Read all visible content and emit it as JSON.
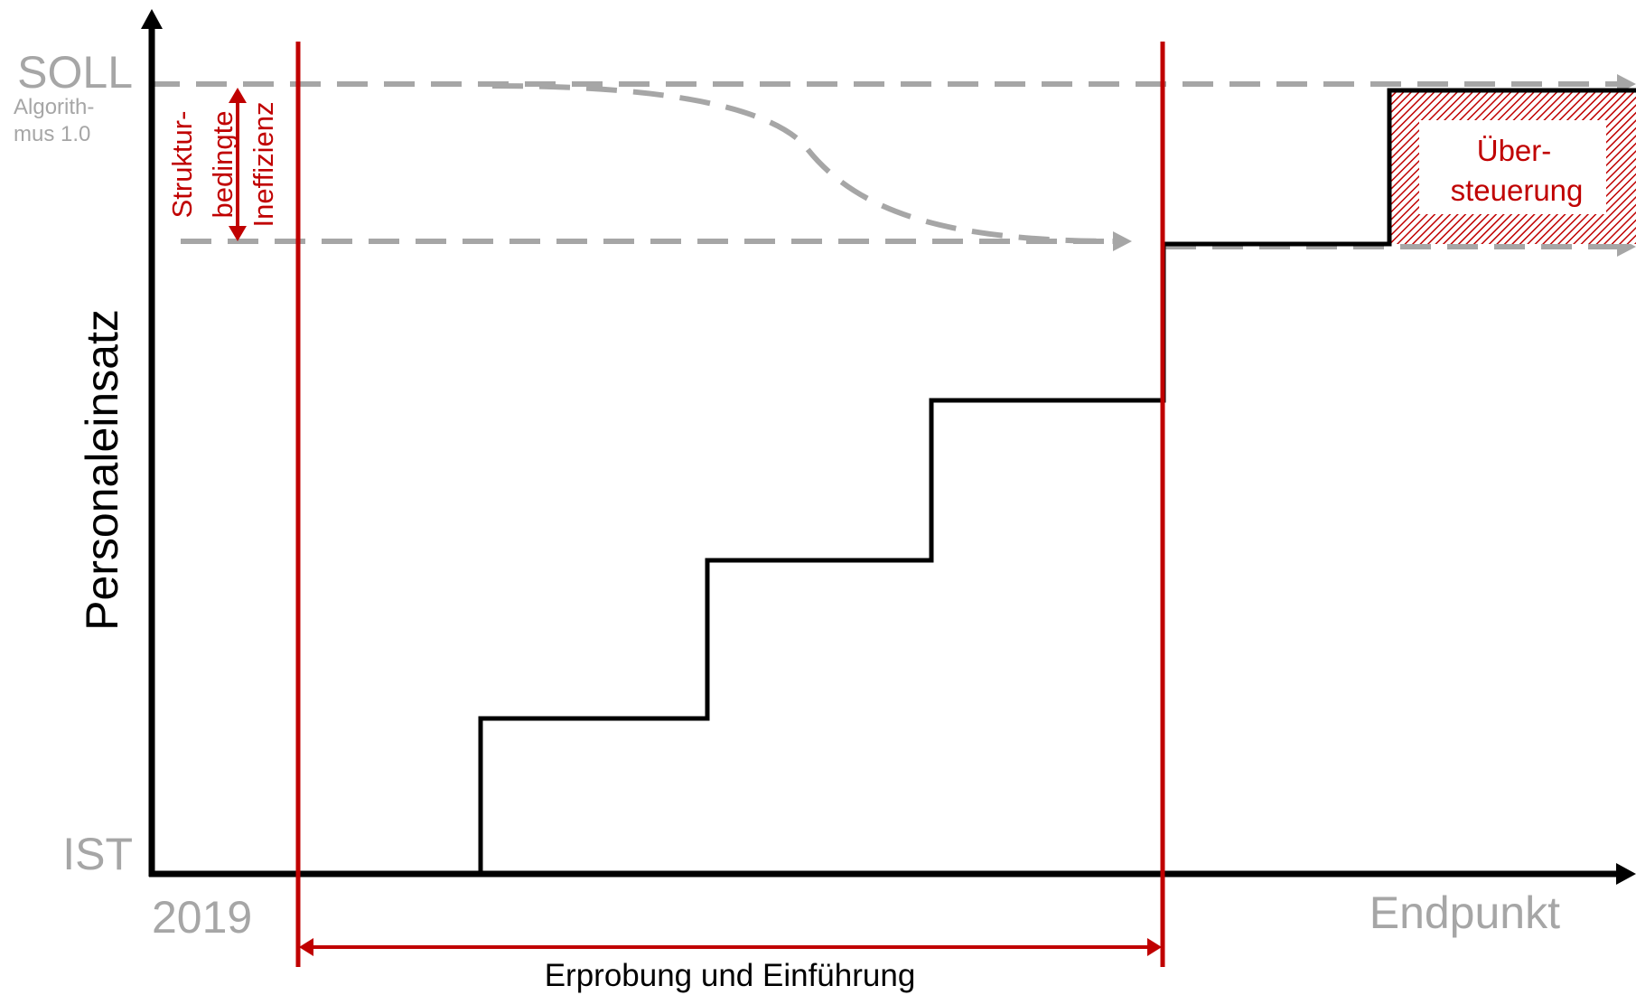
{
  "axes": {
    "y_label": "Personaleinsatz",
    "y_top_label": "SOLL",
    "y_top_sublabel_line1": "Algorith-",
    "y_top_sublabel_line2": "mus 1.0",
    "y_bottom_label": "IST",
    "x_start_label": "2019",
    "x_end_label": "Endpunkt"
  },
  "annotations": {
    "ineff_line1": "Struktur-",
    "ineff_line2": "bedingte",
    "ineff_line3": "Ineffizienz",
    "override_line1": "Über-",
    "override_line2": "steuerung",
    "phase_label": "Erprobung und Einführung"
  },
  "colors": {
    "axis": "#000000",
    "step_line": "#000000",
    "accent_red": "#c00000",
    "dashed_gray": "#a6a6a6",
    "label_gray": "#a6a6a6"
  }
}
